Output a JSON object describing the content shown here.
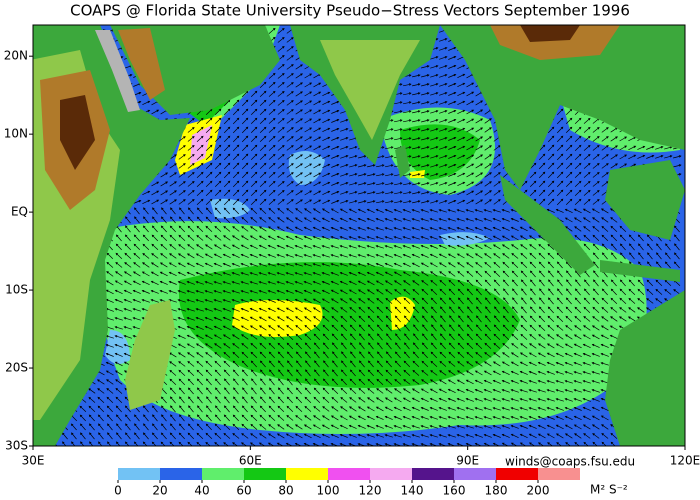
{
  "title": "COAPS @ Florida State University Pseudo−Stress Vectors  September 1996",
  "map": {
    "lonlim": [
      30,
      120
    ],
    "latlim": [
      -30,
      24
    ],
    "lon_ticks": [
      {
        "value": 30,
        "label": "30E"
      },
      {
        "value": 60,
        "label": "60E"
      },
      {
        "value": 90,
        "label": "90E"
      },
      {
        "value": 120,
        "label": "120E"
      }
    ],
    "lat_ticks": [
      {
        "value": 20,
        "label": "20N"
      },
      {
        "value": 10,
        "label": "10N"
      },
      {
        "value": 0,
        "label": "EQ"
      },
      {
        "value": -10,
        "label": "10S"
      },
      {
        "value": -20,
        "label": "20S"
      },
      {
        "value": -30,
        "label": "30S"
      }
    ]
  },
  "colorbar": {
    "ticks": [
      0,
      20,
      40,
      60,
      80,
      100,
      120,
      140,
      160,
      180,
      200
    ],
    "colors": [
      "#72c2f4",
      "#2a64e8",
      "#60ee6c",
      "#14c814",
      "#ffff00",
      "#f050f0",
      "#f5aaf0",
      "#55148c",
      "#a070f0",
      "#f00000",
      "#f89090"
    ],
    "units": "M² S⁻²"
  },
  "credit": "winds@coaps.fsu.edu"
}
